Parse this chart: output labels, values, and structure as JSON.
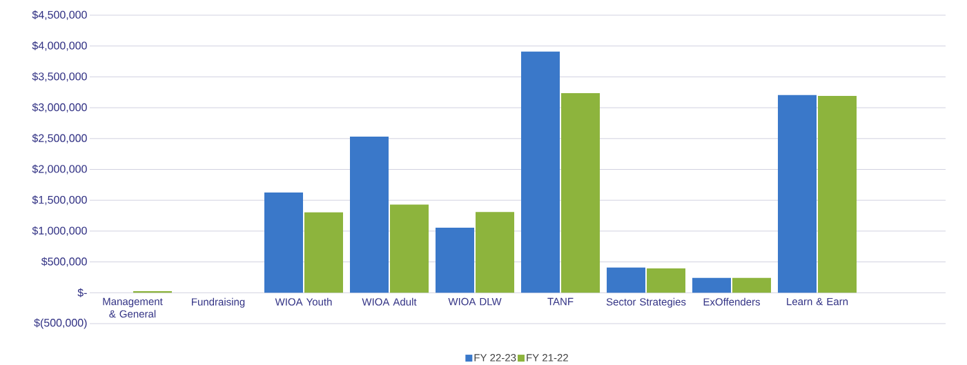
{
  "chart_data": {
    "type": "bar",
    "categories": [
      "Management & General",
      "Fundraising",
      "WIOA Youth",
      "WIOA Adult",
      "WIOA DLW",
      "TANF",
      "Sector Strategies",
      "ExOffenders",
      "Learn & Earn",
      null
    ],
    "series": [
      {
        "name": "FY 22-23",
        "color": "#3a78c9",
        "values": [
          0,
          0,
          1625000,
          2530000,
          1055000,
          3910000,
          410000,
          240000,
          3205000,
          0
        ]
      },
      {
        "name": "FY 21-22",
        "color": "#8db43d",
        "values": [
          25000,
          0,
          1305000,
          1430000,
          1310000,
          3235000,
          395000,
          240000,
          3190000,
          0
        ]
      }
    ],
    "ylim": [
      -500000,
      4500000
    ],
    "yticks": [
      {
        "value": -500000,
        "label": "$(500,000)"
      },
      {
        "value": 0,
        "label": "$-"
      },
      {
        "value": 500000,
        "label": "$500,000"
      },
      {
        "value": 1000000,
        "label": "$1,000,000"
      },
      {
        "value": 1500000,
        "label": "$1,500,000"
      },
      {
        "value": 2000000,
        "label": "$2,000,000"
      },
      {
        "value": 2500000,
        "label": "$2,500,000"
      },
      {
        "value": 3000000,
        "label": "$3,000,000"
      },
      {
        "value": 3500000,
        "label": "$3,500,000"
      },
      {
        "value": 4000000,
        "label": "$4,000,000"
      },
      {
        "value": 4500000,
        "label": "$4,500,000"
      }
    ],
    "grid": "y",
    "legend": "bottom"
  }
}
